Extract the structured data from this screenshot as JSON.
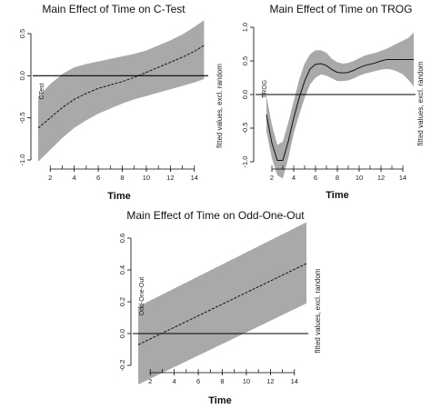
{
  "chart_data": [
    {
      "type": "area",
      "title": "Main Effect of Time on C-Test",
      "xlabel": "Time",
      "ylabel": "CTest",
      "side_label": "fitted values, excl. random",
      "xlim": [
        1,
        15
      ],
      "ylim": [
        -1.0,
        0.5
      ],
      "x_ticks": [
        2,
        4,
        6,
        8,
        10,
        12,
        14
      ],
      "y_ticks": [
        -1.0,
        -0.5,
        0.0,
        0.5
      ],
      "y_tick_labels": [
        "-1.0",
        "-0.5",
        "0.0",
        "0.5"
      ],
      "reference_line": 0,
      "line_style": "dashed",
      "x": [
        1,
        2,
        3,
        4,
        5,
        6,
        7,
        8,
        9,
        10,
        11,
        12,
        13,
        14,
        14.8
      ],
      "fit": [
        -0.62,
        -0.5,
        -0.38,
        -0.28,
        -0.21,
        -0.15,
        -0.11,
        -0.07,
        -0.02,
        0.04,
        0.1,
        0.16,
        0.22,
        0.29,
        0.36
      ],
      "lower": [
        -1.02,
        -0.88,
        -0.74,
        -0.62,
        -0.53,
        -0.45,
        -0.39,
        -0.33,
        -0.28,
        -0.24,
        -0.2,
        -0.16,
        -0.12,
        -0.08,
        -0.04
      ],
      "upper": [
        -0.25,
        -0.1,
        0.02,
        0.1,
        0.14,
        0.17,
        0.2,
        0.23,
        0.26,
        0.3,
        0.36,
        0.42,
        0.49,
        0.58,
        0.66
      ]
    },
    {
      "type": "area",
      "title": "Main Effect of Time on TROG",
      "xlabel": "Time",
      "ylabel": "TROG",
      "side_label": "fitted values, excl. random",
      "xlim": [
        1,
        15
      ],
      "ylim": [
        -1.0,
        1.0
      ],
      "x_ticks": [
        2,
        4,
        6,
        8,
        10,
        12,
        14
      ],
      "y_ticks": [
        -1.0,
        -0.5,
        0.0,
        0.5,
        1.0
      ],
      "y_tick_labels": [
        "-1.0",
        "-0.5",
        "0.0",
        "0.5",
        "1.0"
      ],
      "reference_line": 0,
      "line_style": "solid",
      "x": [
        1.5,
        2,
        2.5,
        3,
        3.5,
        4,
        4.5,
        5,
        5.5,
        6,
        6.5,
        7,
        7.5,
        8,
        8.5,
        9,
        9.5,
        10,
        10.5,
        11,
        11.5,
        12,
        12.5,
        13,
        13.5,
        14,
        14.5,
        15
      ],
      "fit": [
        -0.3,
        -0.72,
        -0.98,
        -0.98,
        -0.7,
        -0.35,
        -0.05,
        0.2,
        0.38,
        0.45,
        0.46,
        0.43,
        0.37,
        0.33,
        0.32,
        0.33,
        0.36,
        0.4,
        0.43,
        0.45,
        0.47,
        0.5,
        0.52,
        0.52,
        0.52,
        0.52,
        0.52,
        0.52
      ],
      "lower": [
        -0.55,
        -0.95,
        -1.2,
        -1.25,
        -0.95,
        -0.58,
        -0.3,
        -0.05,
        0.15,
        0.25,
        0.3,
        0.28,
        0.24,
        0.2,
        0.2,
        0.21,
        0.24,
        0.28,
        0.31,
        0.33,
        0.35,
        0.37,
        0.38,
        0.37,
        0.34,
        0.3,
        0.22,
        0.12
      ],
      "upper": [
        -0.02,
        -0.45,
        -0.75,
        -0.7,
        -0.42,
        -0.1,
        0.22,
        0.46,
        0.6,
        0.66,
        0.66,
        0.62,
        0.53,
        0.48,
        0.46,
        0.47,
        0.5,
        0.54,
        0.58,
        0.6,
        0.62,
        0.65,
        0.68,
        0.72,
        0.76,
        0.8,
        0.84,
        0.92
      ]
    },
    {
      "type": "area",
      "title": "Main Effect of Time on Odd-One-Out",
      "xlabel": "Time",
      "ylabel": "Odd-One-Out",
      "side_label": "fitted values, excl. random",
      "xlim": [
        1,
        15
      ],
      "ylim": [
        -0.2,
        0.6
      ],
      "x_ticks": [
        2,
        4,
        6,
        8,
        10,
        12,
        14
      ],
      "y_ticks": [
        -0.2,
        0.0,
        0.2,
        0.4,
        0.6
      ],
      "y_tick_labels": [
        "-0.2",
        "0.0",
        "0.2",
        "0.4",
        "0.6"
      ],
      "reference_line": 0,
      "line_style": "dashed",
      "x": [
        1,
        15
      ],
      "fit": [
        -0.07,
        0.44
      ],
      "lower": [
        -0.32,
        0.19
      ],
      "upper": [
        0.17,
        0.7
      ]
    }
  ]
}
